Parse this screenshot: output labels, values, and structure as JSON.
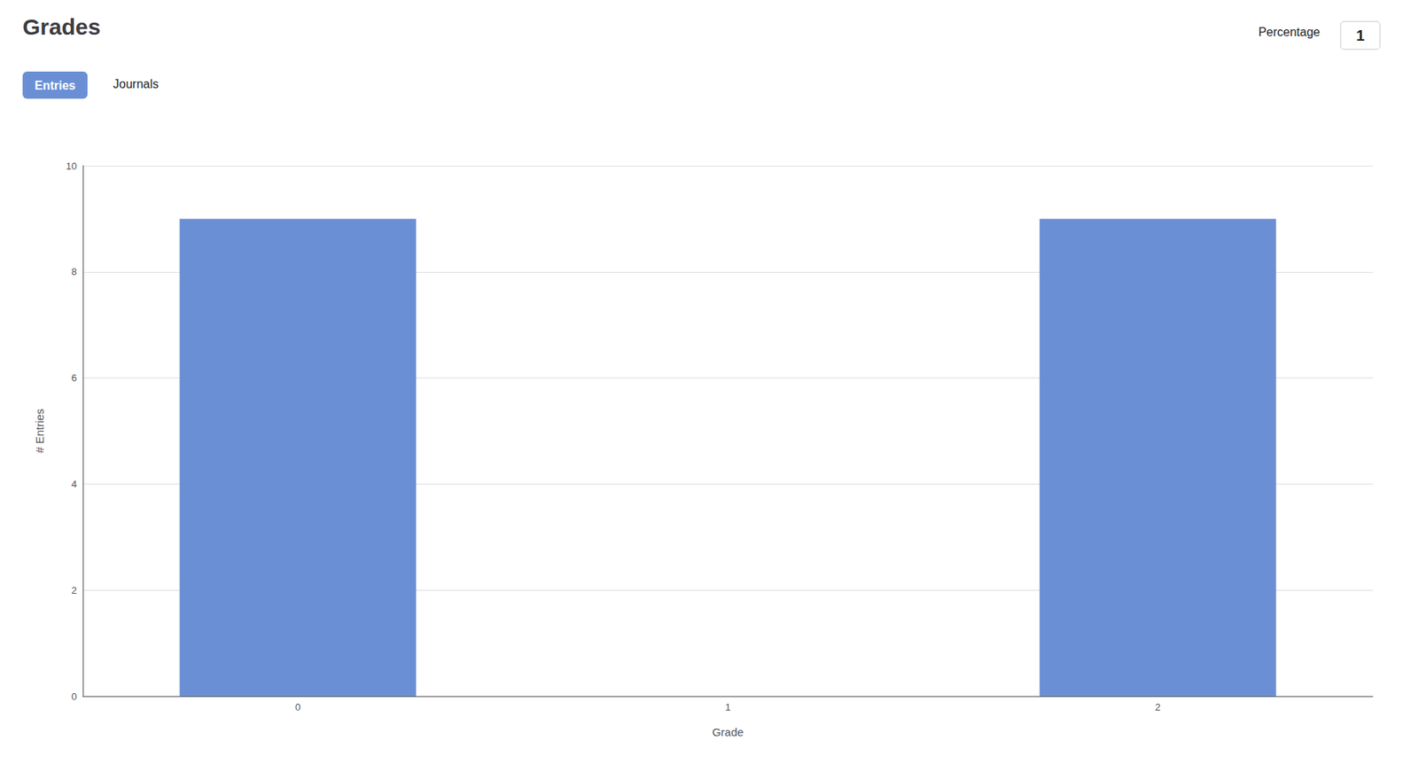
{
  "chart_data": {
    "type": "bar",
    "title": "Grades",
    "categories": [
      "0",
      "1",
      "2"
    ],
    "values": [
      9,
      0,
      9
    ],
    "color": "#6b8fd4",
    "xlabel": "Grade",
    "ylabel": "# Entries",
    "ylim": [
      0,
      10
    ],
    "yticks": [
      0,
      2,
      4,
      6,
      8,
      10
    ],
    "grid": true,
    "annotations": [
      "Entries",
      "Journals",
      "Percentage",
      "1"
    ]
  }
}
